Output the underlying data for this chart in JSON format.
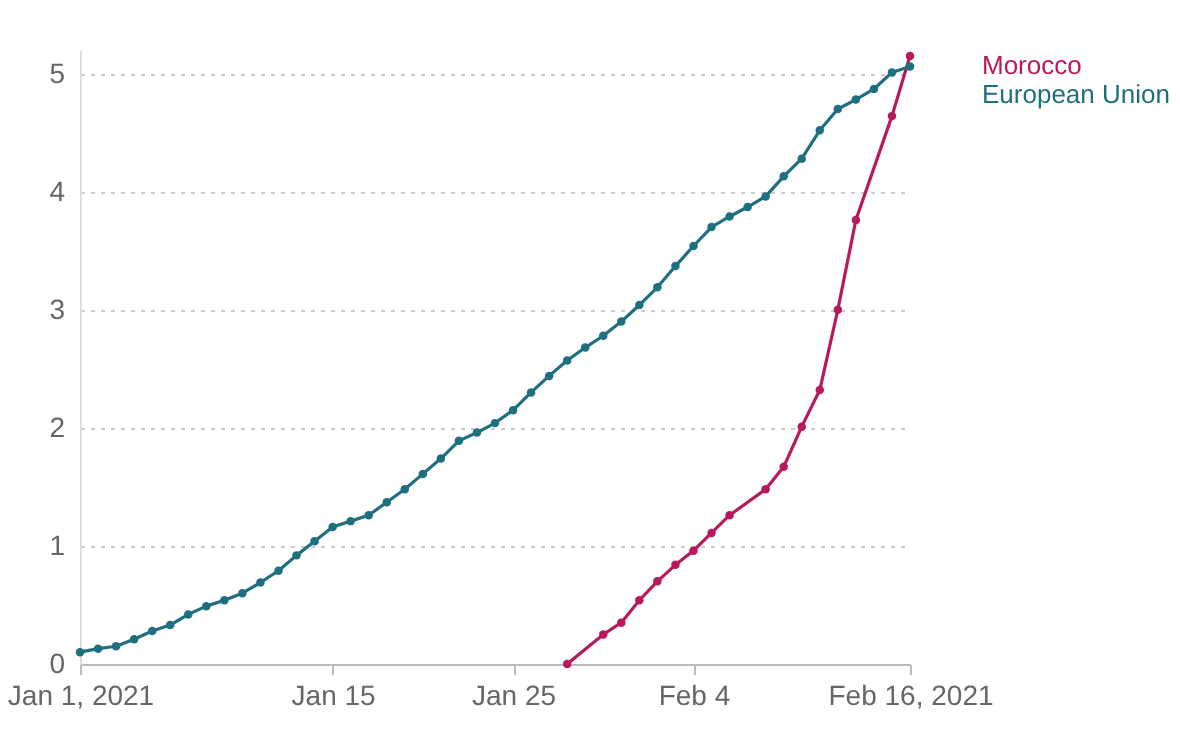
{
  "chart_data": {
    "type": "line",
    "marker": "circle",
    "grid": "y",
    "legend": "right",
    "line_style": "solid",
    "xlim": [
      "2021-01-01",
      "2021-02-16"
    ],
    "xticks": [
      {
        "value": "2021-01-01",
        "label": "Jan 1, 2021"
      },
      {
        "value": "2021-01-15",
        "label": "Jan 15"
      },
      {
        "value": "2021-01-25",
        "label": "Jan 25"
      },
      {
        "value": "2021-02-04",
        "label": "Feb 4"
      },
      {
        "value": "2021-02-16",
        "label": "Feb 16, 2021"
      }
    ],
    "ylim": [
      0,
      5.2
    ],
    "yticks": [
      0,
      1,
      2,
      3,
      4,
      5
    ],
    "series": [
      {
        "name": "Morocco",
        "color": "#b8195c",
        "x": [
          "2021-01-28",
          "2021-01-30",
          "2021-01-31",
          "2021-02-01",
          "2021-02-02",
          "2021-02-03",
          "2021-02-04",
          "2021-02-05",
          "2021-02-06",
          "2021-02-08",
          "2021-02-09",
          "2021-02-10",
          "2021-02-11",
          "2021-02-12",
          "2021-02-13",
          "2021-02-15",
          "2021-02-16"
        ],
        "values": [
          0,
          0.25,
          0.35,
          0.54,
          0.7,
          0.84,
          0.96,
          1.11,
          1.26,
          1.48,
          1.67,
          2.01,
          2.32,
          3.0,
          3.76,
          4.64,
          5.15
        ]
      },
      {
        "name": "European Union",
        "color": "#1e6f80",
        "x": [
          "2021-01-01",
          "2021-01-02",
          "2021-01-03",
          "2021-01-04",
          "2021-01-05",
          "2021-01-06",
          "2021-01-07",
          "2021-01-08",
          "2021-01-09",
          "2021-01-10",
          "2021-01-11",
          "2021-01-12",
          "2021-01-13",
          "2021-01-14",
          "2021-01-15",
          "2021-01-16",
          "2021-01-17",
          "2021-01-18",
          "2021-01-19",
          "2021-01-20",
          "2021-01-21",
          "2021-01-22",
          "2021-01-23",
          "2021-01-24",
          "2021-01-25",
          "2021-01-26",
          "2021-01-27",
          "2021-01-28",
          "2021-01-29",
          "2021-01-30",
          "2021-01-31",
          "2021-02-01",
          "2021-02-02",
          "2021-02-03",
          "2021-02-04",
          "2021-02-05",
          "2021-02-06",
          "2021-02-07",
          "2021-02-08",
          "2021-02-09",
          "2021-02-10",
          "2021-02-11",
          "2021-02-12",
          "2021-02-13",
          "2021-02-14",
          "2021-02-15",
          "2021-02-16"
        ],
        "values": [
          0.1,
          0.13,
          0.15,
          0.21,
          0.28,
          0.33,
          0.42,
          0.49,
          0.54,
          0.6,
          0.69,
          0.79,
          0.92,
          1.04,
          1.16,
          1.21,
          1.26,
          1.37,
          1.48,
          1.61,
          1.74,
          1.89,
          1.96,
          2.04,
          2.15,
          2.3,
          2.44,
          2.57,
          2.68,
          2.78,
          2.9,
          3.04,
          3.19,
          3.37,
          3.54,
          3.7,
          3.79,
          3.87,
          3.96,
          4.13,
          4.28,
          4.52,
          4.7,
          4.78,
          4.87,
          5.01,
          5.06
        ]
      }
    ]
  }
}
